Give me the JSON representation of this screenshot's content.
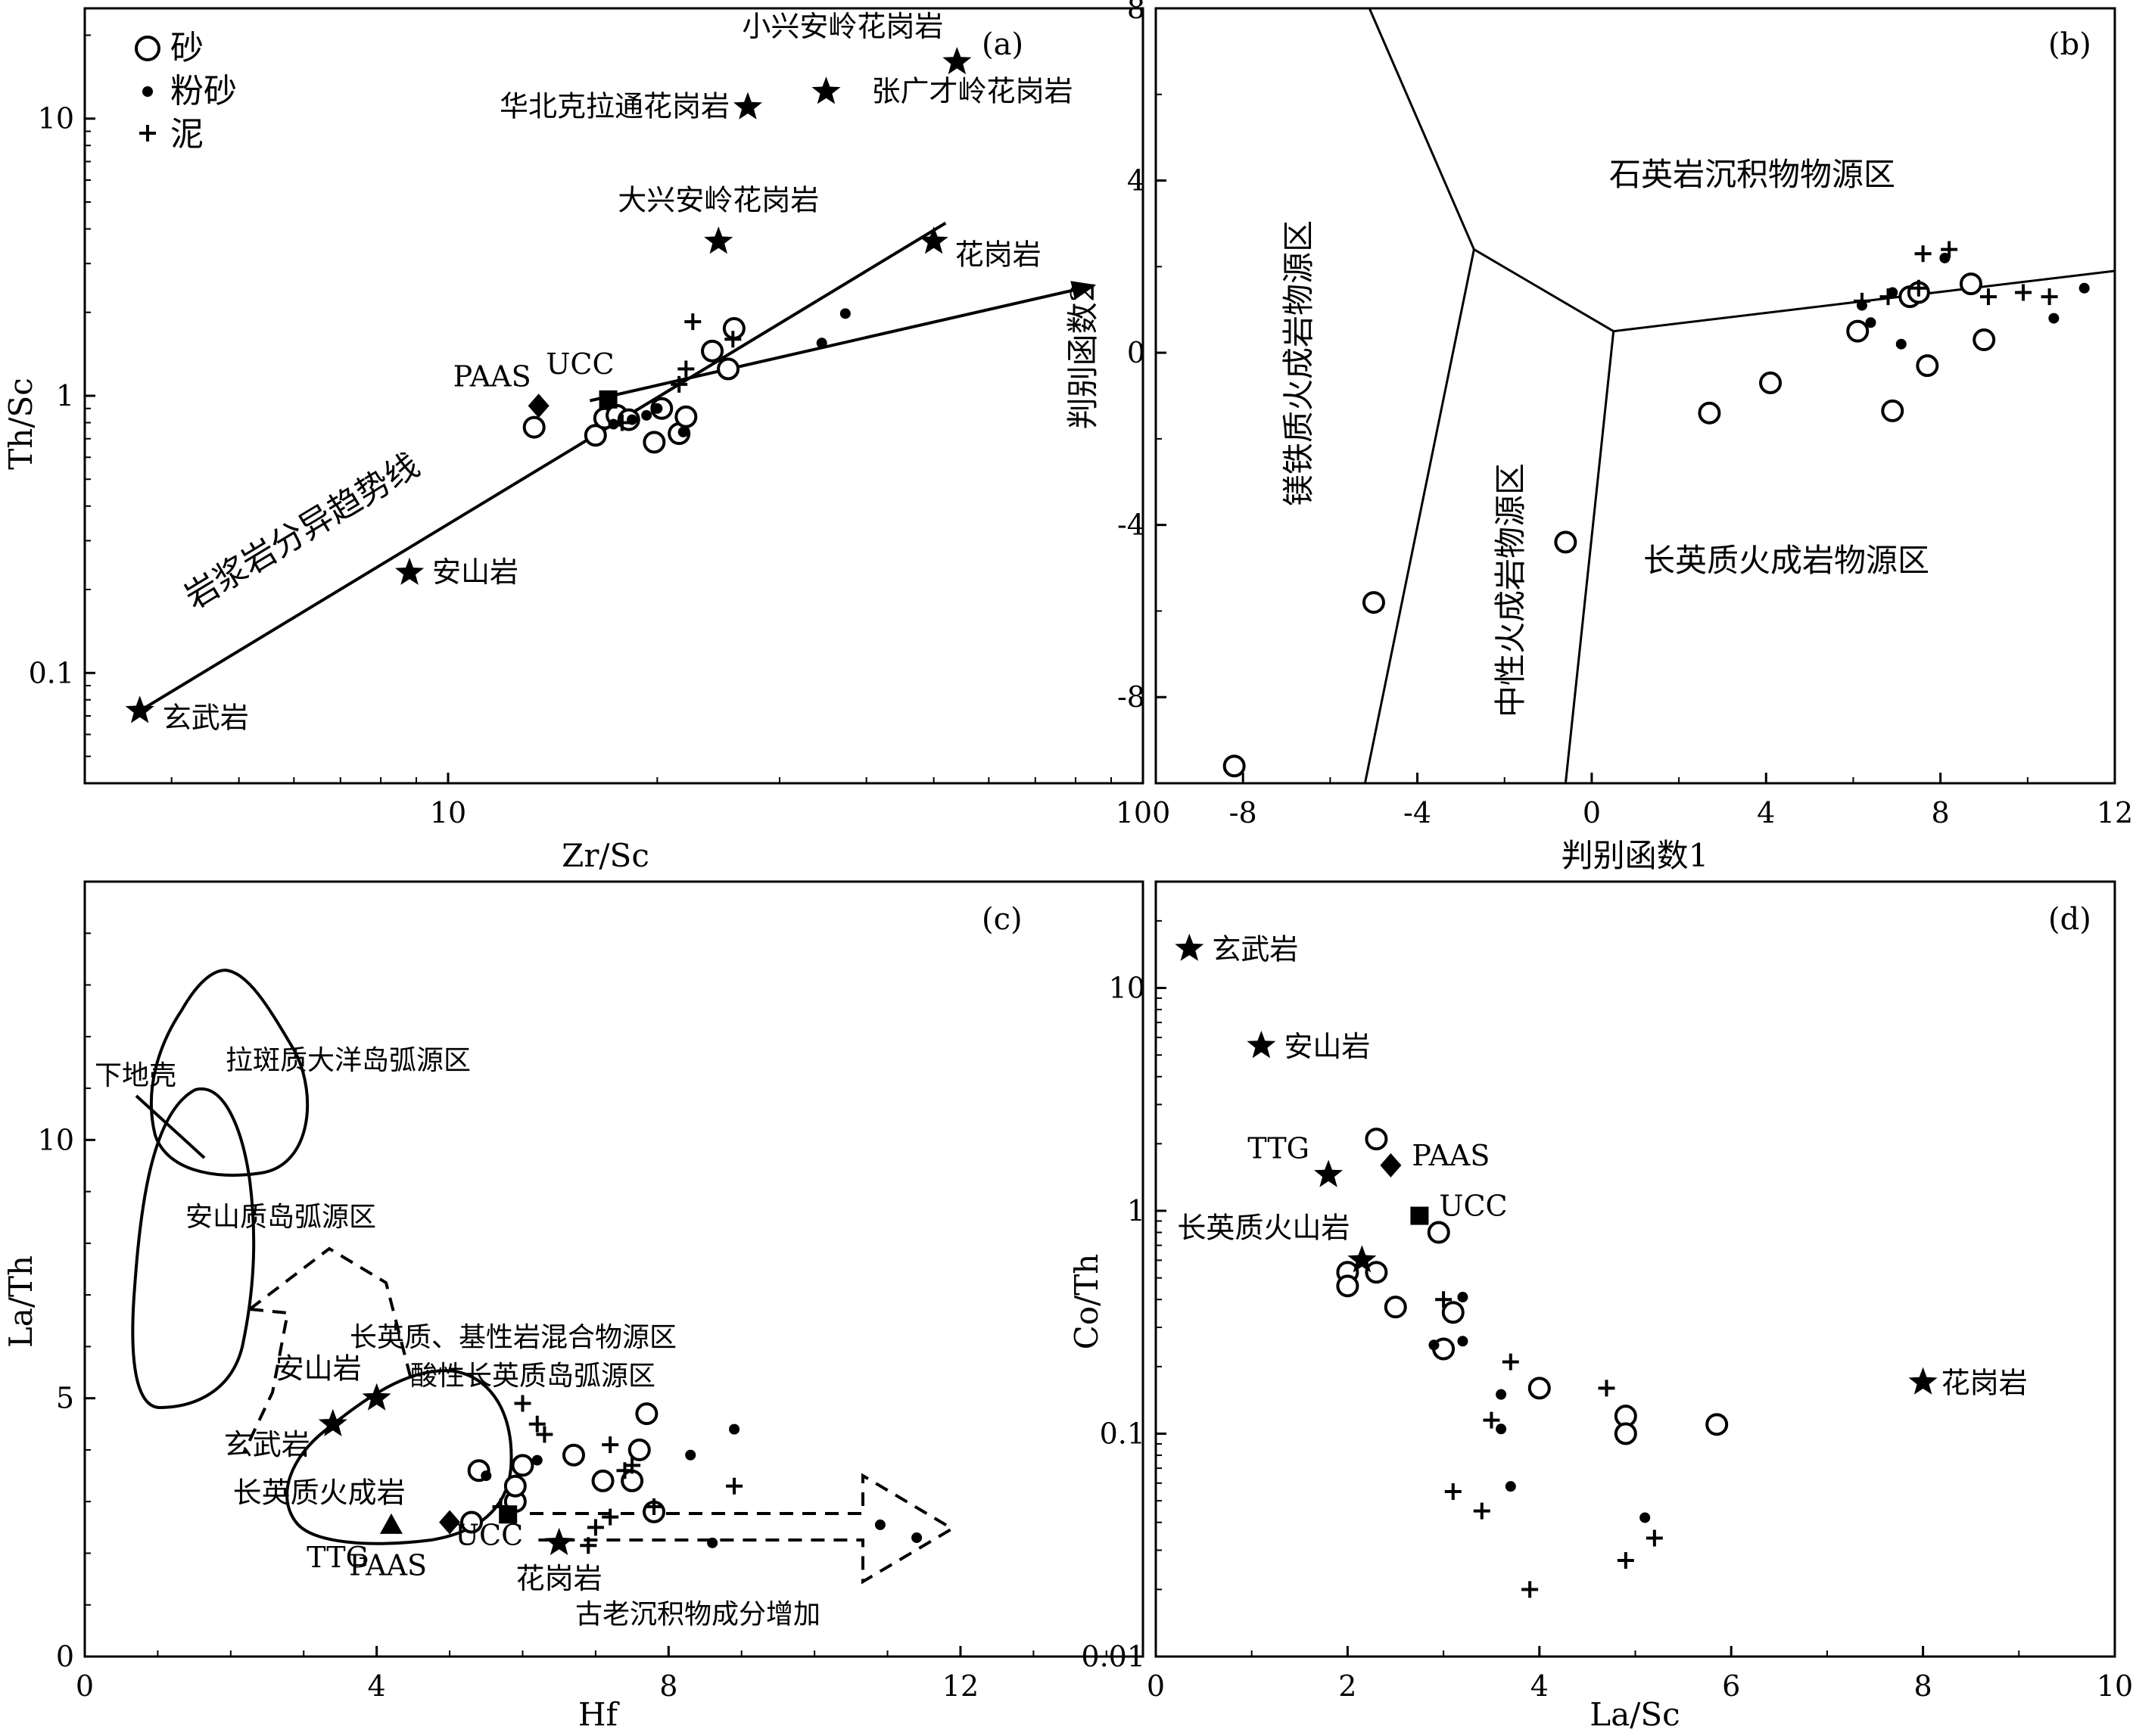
{
  "legend": {
    "items": [
      {
        "symbol": "open-circle",
        "label": "砂"
      },
      {
        "symbol": "filled-dot",
        "label": "粉砂"
      },
      {
        "symbol": "plus",
        "label": "泥"
      }
    ]
  },
  "chart_data": [
    {
      "panel": "(a)",
      "type": "scatter",
      "xlabel": "Zr/Sc",
      "ylabel": "Th/Sc",
      "xscale": "log",
      "yscale": "log",
      "xlim": [
        3,
        100
      ],
      "ylim": [
        0.04,
        25
      ],
      "xticks": [
        10,
        100
      ],
      "yticks": [
        0.1,
        1,
        10
      ],
      "legend_position": "top-left",
      "reference_points": [
        {
          "label": "玄武岩",
          "symbol": "star",
          "x": 3.6,
          "y": 0.073
        },
        {
          "label": "安山岩",
          "symbol": "star",
          "x": 8.8,
          "y": 0.23
        },
        {
          "label": "大兴安岭花岗岩",
          "symbol": "star",
          "x": 24.5,
          "y": 3.6
        },
        {
          "label": "花岗岩",
          "symbol": "star",
          "x": 50,
          "y": 3.6
        },
        {
          "label": "华北克拉通花岗岩",
          "symbol": "star",
          "x": 27,
          "y": 11
        },
        {
          "label": "小兴安岭花岗岩",
          "symbol": "star",
          "x": 54,
          "y": 16
        },
        {
          "label": "张广才岭花岗岩",
          "symbol": "star",
          "x": 35,
          "y": 12.5
        },
        {
          "label": "PAAS",
          "symbol": "diamond",
          "x": 13.5,
          "y": 0.92
        },
        {
          "label": "UCC",
          "symbol": "square",
          "x": 17,
          "y": 0.97
        }
      ],
      "series": [
        {
          "name": "砂",
          "symbol": "open-circle",
          "points": [
            [
              13.3,
              0.77
            ],
            [
              16.3,
              0.72
            ],
            [
              16.8,
              0.83
            ],
            [
              17.5,
              0.85
            ],
            [
              18.2,
              0.82
            ],
            [
              19.8,
              0.68
            ],
            [
              20.3,
              0.9
            ],
            [
              21.5,
              0.73
            ],
            [
              22.0,
              0.84
            ],
            [
              24.0,
              1.45
            ],
            [
              25.3,
              1.25
            ],
            [
              25.8,
              1.75
            ]
          ]
        },
        {
          "name": "粉砂",
          "symbol": "filled-dot",
          "points": [
            [
              17.3,
              0.79
            ],
            [
              18.4,
              0.82
            ],
            [
              19.3,
              0.85
            ],
            [
              20.0,
              0.9
            ],
            [
              21.8,
              0.74
            ],
            [
              34.5,
              1.55
            ],
            [
              37.3,
              1.98
            ]
          ]
        },
        {
          "name": "泥",
          "symbol": "plus",
          "points": [
            [
              17.8,
              0.8
            ],
            [
              21.5,
              1.1
            ],
            [
              22.0,
              1.25
            ],
            [
              22.5,
              1.85
            ],
            [
              25.7,
              1.6
            ]
          ]
        }
      ],
      "trend_lines": [
        {
          "label": "岩浆岩分异趋势线",
          "from": [
            3.6,
            0.073
          ],
          "to": [
            52,
            4.2
          ]
        },
        {
          "label": "",
          "from": [
            16,
            0.96
          ],
          "to": [
            85,
            2.5
          ],
          "arrow": true
        }
      ]
    },
    {
      "panel": "(b)",
      "type": "scatter",
      "xlabel": "判别函数1",
      "ylabel": "判别函数2",
      "xlim": [
        -10,
        12
      ],
      "ylim": [
        -10,
        8
      ],
      "xticks": [
        -8,
        -4,
        0,
        4,
        8,
        12
      ],
      "yticks": [
        -8,
        -4,
        0,
        4,
        8
      ],
      "regions": [
        "镁铁质火成岩物源区",
        "中性火成岩物源区",
        "石英岩沉积物物源区",
        "长英质火成岩物源区"
      ],
      "boundaries": [
        [
          [
            -5.1,
            8
          ],
          [
            -2.7,
            2.4
          ],
          [
            0.5,
            0.5
          ],
          [
            12,
            1.9
          ]
        ],
        [
          [
            -2.7,
            2.4
          ],
          [
            -5.2,
            -10
          ]
        ],
        [
          [
            0.5,
            0.5
          ],
          [
            -0.6,
            -10
          ]
        ]
      ],
      "series": [
        {
          "name": "砂",
          "symbol": "open-circle",
          "points": [
            [
              -8.2,
              -9.6
            ],
            [
              -5.0,
              -5.8
            ],
            [
              -0.6,
              -4.4
            ],
            [
              2.7,
              -1.4
            ],
            [
              4.1,
              -0.7
            ],
            [
              6.1,
              0.5
            ],
            [
              6.9,
              -1.35
            ],
            [
              7.3,
              1.3
            ],
            [
              7.5,
              1.4
            ],
            [
              7.7,
              -0.3
            ],
            [
              8.7,
              1.6
            ],
            [
              9.0,
              0.3
            ]
          ]
        },
        {
          "name": "粉砂",
          "symbol": "filled-dot",
          "points": [
            [
              6.2,
              1.1
            ],
            [
              6.4,
              0.7
            ],
            [
              6.9,
              1.4
            ],
            [
              7.1,
              0.2
            ],
            [
              8.1,
              2.2
            ],
            [
              10.6,
              0.8
            ],
            [
              11.3,
              1.5
            ]
          ]
        },
        {
          "name": "泥",
          "symbol": "plus",
          "points": [
            [
              6.2,
              1.2
            ],
            [
              6.8,
              1.3
            ],
            [
              7.5,
              1.5
            ],
            [
              7.6,
              2.3
            ],
            [
              8.2,
              2.4
            ],
            [
              9.1,
              1.3
            ],
            [
              9.9,
              1.4
            ],
            [
              10.5,
              1.3
            ]
          ]
        }
      ]
    },
    {
      "panel": "(c)",
      "type": "scatter",
      "xlabel": "Hf",
      "ylabel": "La/Th",
      "xlim": [
        0,
        14.5
      ],
      "ylim": [
        0,
        15
      ],
      "xticks": [
        0,
        4,
        8,
        12
      ],
      "yticks": [
        0,
        5,
        10
      ],
      "regions": [
        "下地壳",
        "拉斑质大洋岛弧源区",
        "安山质岛弧源区",
        "长英质、基性岩混合物源区",
        "酸性长英质岛弧源区",
        "古老沉积物成分增加"
      ],
      "reference_points": [
        {
          "label": "玄武岩",
          "symbol": "star",
          "x": 3.4,
          "y": 4.5
        },
        {
          "label": "安山岩",
          "symbol": "star",
          "x": 4.0,
          "y": 5.0
        },
        {
          "label": "长英质火成岩",
          "symbol": "none",
          "x": 4.0,
          "y": 3.3
        },
        {
          "label": "TTG",
          "symbol": "triangle",
          "x": 4.2,
          "y": 2.55
        },
        {
          "label": "PAAS",
          "symbol": "diamond",
          "x": 5.0,
          "y": 2.6
        },
        {
          "label": "UCC",
          "symbol": "square",
          "x": 5.8,
          "y": 2.75
        },
        {
          "label": "花岗岩",
          "symbol": "star",
          "x": 6.5,
          "y": 2.2
        }
      ],
      "series": [
        {
          "name": "砂",
          "symbol": "open-circle",
          "points": [
            [
              5.3,
              2.6
            ],
            [
              5.4,
              3.6
            ],
            [
              5.9,
              3.0
            ],
            [
              5.9,
              3.3
            ],
            [
              6.0,
              3.7
            ],
            [
              6.7,
              3.9
            ],
            [
              7.1,
              3.4
            ],
            [
              7.5,
              3.4
            ],
            [
              7.6,
              4.0
            ],
            [
              7.7,
              4.7
            ],
            [
              7.8,
              2.8
            ]
          ]
        },
        {
          "name": "粉砂",
          "symbol": "filled-dot",
          "points": [
            [
              5.5,
              3.5
            ],
            [
              6.2,
              3.8
            ],
            [
              8.3,
              3.9
            ],
            [
              8.6,
              2.2
            ],
            [
              8.9,
              4.4
            ],
            [
              10.9,
              2.55
            ],
            [
              11.4,
              2.3
            ]
          ]
        },
        {
          "name": "泥",
          "symbol": "plus",
          "points": [
            [
              5.7,
              2.9
            ],
            [
              6.0,
              4.9
            ],
            [
              6.2,
              4.5
            ],
            [
              6.3,
              4.3
            ],
            [
              6.9,
              2.15
            ],
            [
              7.0,
              2.5
            ],
            [
              7.2,
              2.7
            ],
            [
              7.2,
              4.1
            ],
            [
              7.4,
              3.6
            ],
            [
              7.5,
              3.7
            ],
            [
              7.8,
              2.9
            ],
            [
              8.9,
              3.3
            ]
          ]
        }
      ]
    },
    {
      "panel": "(d)",
      "type": "scatter",
      "xlabel": "La/Sc",
      "ylabel": "Co/Th",
      "yscale": "log",
      "xlim": [
        0,
        10
      ],
      "ylim": [
        0.01,
        30
      ],
      "xticks": [
        0,
        2,
        4,
        6,
        8,
        10
      ],
      "yticks": [
        0.01,
        0.1,
        1,
        10
      ],
      "reference_points": [
        {
          "label": "玄武岩",
          "symbol": "star",
          "x": 0.35,
          "y": 15
        },
        {
          "label": "安山岩",
          "symbol": "star",
          "x": 1.1,
          "y": 5.5
        },
        {
          "label": "TTG",
          "symbol": "star",
          "x": 1.8,
          "y": 1.45
        },
        {
          "label": "PAAS",
          "symbol": "diamond",
          "x": 2.45,
          "y": 1.6
        },
        {
          "label": "UCC",
          "symbol": "square",
          "x": 2.75,
          "y": 0.95
        },
        {
          "label": "长英质火山岩",
          "symbol": "star",
          "x": 2.15,
          "y": 0.6
        },
        {
          "label": "花岗岩",
          "symbol": "star",
          "x": 8.0,
          "y": 0.17
        }
      ],
      "series": [
        {
          "name": "砂",
          "symbol": "open-circle",
          "points": [
            [
              2.0,
              0.53
            ],
            [
              2.0,
              0.46
            ],
            [
              2.3,
              0.53
            ],
            [
              2.3,
              2.1
            ],
            [
              2.5,
              0.37
            ],
            [
              2.95,
              0.8
            ],
            [
              3.0,
              0.24
            ],
            [
              3.1,
              0.35
            ],
            [
              4.0,
              0.16
            ],
            [
              4.9,
              0.12
            ],
            [
              4.9,
              0.1
            ],
            [
              5.85,
              0.11
            ]
          ]
        },
        {
          "name": "粉砂",
          "symbol": "filled-dot",
          "points": [
            [
              2.9,
              0.25
            ],
            [
              3.2,
              0.41
            ],
            [
              3.2,
              0.26
            ],
            [
              3.6,
              0.15
            ],
            [
              3.6,
              0.105
            ],
            [
              3.7,
              0.058
            ],
            [
              5.1,
              0.042
            ]
          ]
        },
        {
          "name": "泥",
          "symbol": "plus",
          "points": [
            [
              3.0,
              0.4
            ],
            [
              3.1,
              0.055
            ],
            [
              3.4,
              0.045
            ],
            [
              3.5,
              0.115
            ],
            [
              3.7,
              0.21
            ],
            [
              3.9,
              0.02
            ],
            [
              4.7,
              0.16
            ],
            [
              4.9,
              0.027
            ],
            [
              5.2,
              0.034
            ]
          ]
        }
      ]
    }
  ]
}
